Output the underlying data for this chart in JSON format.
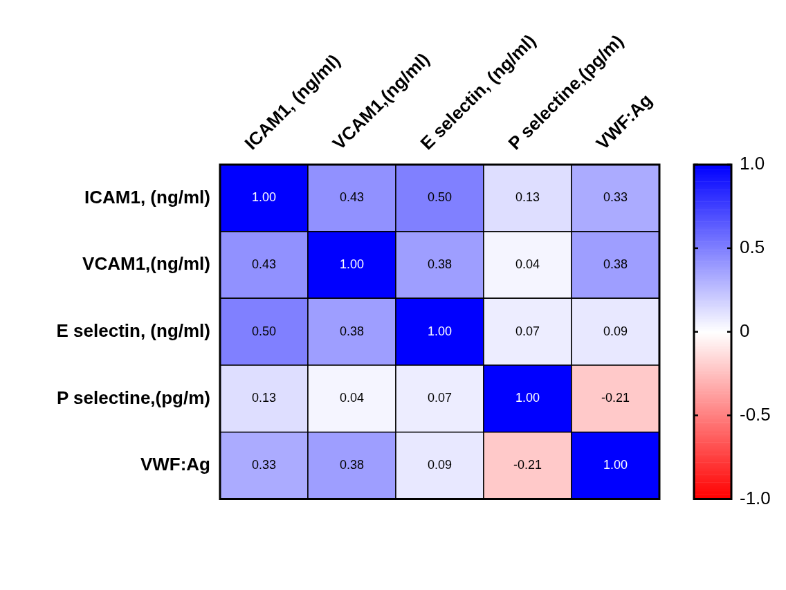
{
  "chart_data": {
    "type": "heatmap",
    "categories": [
      "ICAM1, (ng/ml)",
      "VCAM1,(ng/ml)",
      "E selectin, (ng/ml)",
      "P selectine,(pg/m)",
      "VWF:Ag"
    ],
    "y_categories": [
      "ICAM1, (ng/ml)",
      "VCAM1,(ng/ml)",
      "E selectin, (ng/ml)",
      "P selectine,(pg/m)",
      "VWF:Ag"
    ],
    "cells": [
      [
        1,
        0.43,
        0.5,
        0.13,
        0.33
      ],
      [
        0.43,
        1,
        0.38,
        0.04,
        0.38
      ],
      [
        0.5,
        0.38,
        1,
        0.07,
        0.09
      ],
      [
        0.13,
        0.04,
        0.07,
        1,
        -0.21
      ],
      [
        0.33,
        0.38,
        0.09,
        -0.21,
        1
      ]
    ],
    "cell_labels": [
      [
        "1.00",
        "0.43",
        "0.50",
        "0.13",
        "0.33"
      ],
      [
        "0.43",
        "1.00",
        "0.38",
        "0.04",
        "0.38"
      ],
      [
        "0.50",
        "0.38",
        "1.00",
        "0.07",
        "0.09"
      ],
      [
        "0.13",
        "0.04",
        "0.07",
        "1.00",
        "-0.21"
      ],
      [
        "0.33",
        "0.38",
        "0.09",
        "-0.21",
        "1.00"
      ]
    ],
    "clim": [
      -1,
      1
    ],
    "cticks": [
      {
        "value": 1,
        "label": "1.0"
      },
      {
        "value": 0.5,
        "label": "0.5"
      },
      0,
      {
        "value": -0.5,
        "label": "-0.5"
      },
      {
        "value": -1,
        "label": "-1.0"
      }
    ]
  }
}
